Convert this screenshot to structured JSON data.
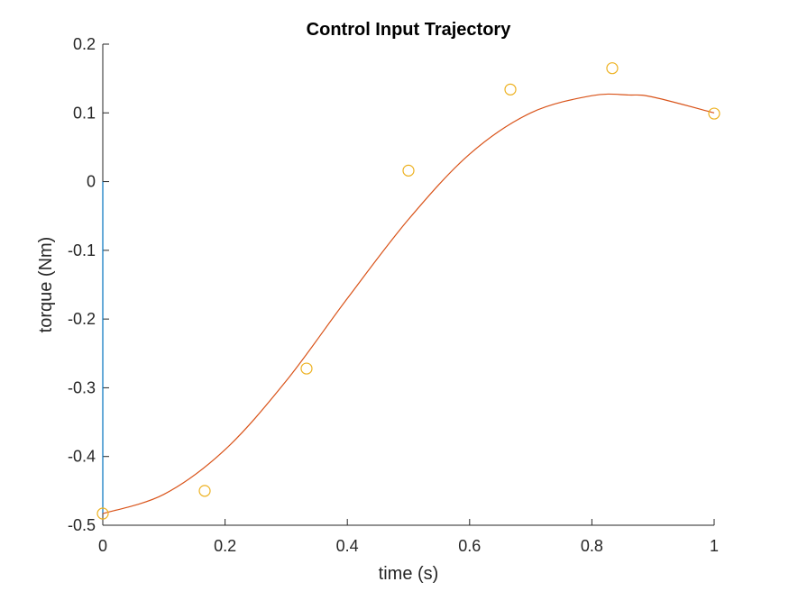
{
  "chart_data": {
    "type": "line",
    "title": "Control Input Trajectory",
    "xlabel": "time (s)",
    "ylabel": "torque (Nm)",
    "xlim": [
      0,
      1
    ],
    "ylim": [
      -0.5,
      0.2
    ],
    "xticks": [
      0,
      0.2,
      0.4,
      0.6,
      0.8,
      1
    ],
    "xtick_labels": [
      "0",
      "0.2",
      "0.4",
      "0.6",
      "0.8",
      "1"
    ],
    "yticks": [
      -0.5,
      -0.4,
      -0.3,
      -0.2,
      -0.1,
      0,
      0.1,
      0.2
    ],
    "ytick_labels": [
      "-0.5",
      "-0.4",
      "-0.3",
      "-0.2",
      "-0.1",
      "0",
      "0.1",
      "0.2"
    ],
    "grid": false,
    "legend": "none",
    "series": [
      {
        "style": "line",
        "color": "#0072BD",
        "x": [
          0,
          0
        ],
        "y": [
          0,
          -0.483
        ]
      },
      {
        "style": "line",
        "color": "#D95319",
        "x": [
          0,
          0.1,
          0.2,
          0.3,
          0.4,
          0.5,
          0.6,
          0.7,
          0.8,
          0.86,
          0.9,
          1.0
        ],
        "y": [
          -0.483,
          -0.455,
          -0.39,
          -0.29,
          -0.17,
          -0.055,
          0.04,
          0.1,
          0.125,
          0.126,
          0.123,
          0.1
        ]
      },
      {
        "style": "markers",
        "marker": "circle",
        "color": "#EDB120",
        "x": [
          0,
          0.1667,
          0.3333,
          0.5,
          0.6667,
          0.8333,
          1.0
        ],
        "y": [
          -0.483,
          -0.45,
          -0.272,
          0.016,
          0.134,
          0.165,
          0.099
        ]
      }
    ]
  }
}
